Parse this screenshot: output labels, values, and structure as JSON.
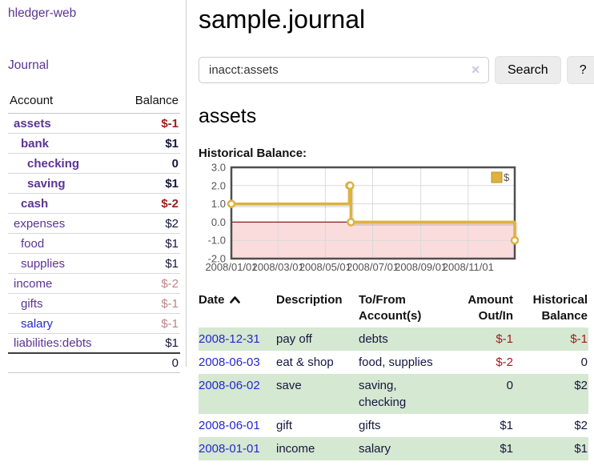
{
  "window": {
    "brand": "hledger-web"
  },
  "sidebar": {
    "nav_journal": "Journal",
    "table_headers": {
      "account": "Account",
      "balance": "Balance"
    },
    "accounts": [
      {
        "name": "assets",
        "balance": "$-1",
        "depth": 1,
        "emphasized": true,
        "balance_tone": "negative",
        "link_tone": "purple"
      },
      {
        "name": "bank",
        "balance": "$1",
        "depth": 2,
        "emphasized": true,
        "balance_tone": "plain",
        "link_tone": "purple"
      },
      {
        "name": "checking",
        "balance": "0",
        "depth": 3,
        "emphasized": true,
        "balance_tone": "plain",
        "link_tone": "purple"
      },
      {
        "name": "saving",
        "balance": "$1",
        "depth": 3,
        "emphasized": true,
        "balance_tone": "plain",
        "link_tone": "purple"
      },
      {
        "name": "cash",
        "balance": "$-2",
        "depth": 2,
        "emphasized": true,
        "balance_tone": "negative",
        "link_tone": "purple"
      },
      {
        "name": "expenses",
        "balance": "$2",
        "depth": 1,
        "emphasized": false,
        "balance_tone": "plain",
        "link_tone": "purple"
      },
      {
        "name": "food",
        "balance": "$1",
        "depth": 2,
        "emphasized": false,
        "balance_tone": "plain",
        "link_tone": "purple"
      },
      {
        "name": "supplies",
        "balance": "$1",
        "depth": 2,
        "emphasized": false,
        "balance_tone": "plain",
        "link_tone": "purple"
      },
      {
        "name": "income",
        "balance": "$-2",
        "depth": 1,
        "emphasized": false,
        "balance_tone": "negative-soft",
        "link_tone": "purple"
      },
      {
        "name": "gifts",
        "balance": "$-1",
        "depth": 2,
        "emphasized": false,
        "balance_tone": "negative-soft",
        "link_tone": "purple"
      },
      {
        "name": "salary",
        "balance": "$-1",
        "depth": 2,
        "emphasized": false,
        "balance_tone": "negative-soft",
        "link_tone": "blue"
      },
      {
        "name": "liabilities:debts",
        "balance": "$1",
        "depth": 1,
        "emphasized": false,
        "balance_tone": "plain",
        "link_tone": "purple"
      }
    ],
    "total": "0"
  },
  "main": {
    "title": "sample.journal",
    "search": {
      "value": "inacct:assets",
      "clear_icon": "✕",
      "button": "Search",
      "help_button": "?"
    },
    "section_title": "assets",
    "chart_label": "Historical Balance:"
  },
  "chart_data": {
    "type": "line",
    "title": "Historical Balance:",
    "step": true,
    "x_start": "2008-01-01",
    "x_end": "2008-12-31",
    "series": [
      {
        "name": "$",
        "color": "#ddb23e",
        "points": [
          [
            "2008-01-01",
            1
          ],
          [
            "2008-06-01",
            2
          ],
          [
            "2008-06-02",
            2
          ],
          [
            "2008-06-03",
            0
          ],
          [
            "2008-12-31",
            -1
          ]
        ]
      }
    ],
    "x_ticks": [
      "2008/01/01",
      "2008/03/01",
      "2008/05/01",
      "2008/07/01",
      "2008/09/01",
      "2008/11/01"
    ],
    "y_ticks": [
      3.0,
      2.0,
      1.0,
      0.0,
      -1.0,
      -2.0
    ],
    "ylim": [
      -2,
      3
    ],
    "grid": true,
    "legend_position": "top-right",
    "negative_region_color": "#fadcdc",
    "zero_line_color": "#8b1a1a"
  },
  "register": {
    "headers": {
      "date": "Date",
      "description": "Description",
      "accounts": "To/From Account(s)",
      "amount": "Amount Out/In",
      "balance": "Historical Balance"
    },
    "sort": "ascending",
    "rows": [
      {
        "date": "2008-12-31",
        "description": "pay off",
        "accounts": "debts",
        "amount": "$-1",
        "balance": "$-1",
        "amount_tone": "negative",
        "balance_tone": "negative",
        "shaded": true
      },
      {
        "date": "2008-06-03",
        "description": "eat & shop",
        "accounts": "food, supplies",
        "amount": "$-2",
        "balance": "0",
        "amount_tone": "negative",
        "balance_tone": "plain",
        "shaded": false
      },
      {
        "date": "2008-06-02",
        "description": "save",
        "accounts": "saving, checking",
        "amount": "0",
        "balance": "$2",
        "amount_tone": "plain",
        "balance_tone": "plain",
        "shaded": true
      },
      {
        "date": "2008-06-01",
        "description": "gift",
        "accounts": "gifts",
        "amount": "$1",
        "balance": "$2",
        "amount_tone": "plain",
        "balance_tone": "plain",
        "shaded": false
      },
      {
        "date": "2008-01-01",
        "description": "income",
        "accounts": "salary",
        "amount": "$1",
        "balance": "$1",
        "amount_tone": "plain",
        "balance_tone": "plain",
        "shaded": true
      }
    ]
  },
  "colors": {
    "link_purple": "#5c3494",
    "link_blue": "#2727cf",
    "negative_strong": "#9e1b1b",
    "negative_soft": "#c08585",
    "value_dark": "#16163e",
    "row_shade_green": "#d5e8d1",
    "chart_line_gold": "#ddb23e",
    "chart_negative_pink": "#fadcdc",
    "chart_zero_line": "#8b1a1a",
    "button_gray": "#ececec"
  }
}
